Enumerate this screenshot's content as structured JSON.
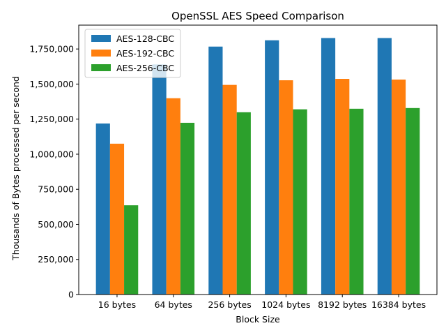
{
  "chart_data": {
    "type": "bar",
    "title": "OpenSSL AES Speed Comparison",
    "xlabel": "Block Size",
    "ylabel": "Thousands of Bytes processed per second",
    "categories": [
      "16 bytes",
      "64 bytes",
      "256 bytes",
      "1024 bytes",
      "8192 bytes",
      "16384 bytes"
    ],
    "series": [
      {
        "name": "AES-128-CBC",
        "color": "#1f77b4",
        "values": [
          1219000,
          1640000,
          1767000,
          1812000,
          1828000,
          1828000
        ]
      },
      {
        "name": "AES-192-CBC",
        "color": "#ff7f0e",
        "values": [
          1075000,
          1399000,
          1494000,
          1527000,
          1537000,
          1532000
        ]
      },
      {
        "name": "AES-256-CBC",
        "color": "#2ca02c",
        "values": [
          636000,
          1224000,
          1299000,
          1320000,
          1324000,
          1329000
        ]
      }
    ],
    "yticks": [
      0,
      250000,
      500000,
      750000,
      1000000,
      1250000,
      1500000,
      1750000
    ],
    "ytick_labels": [
      "0",
      "250,000",
      "500,000",
      "750,000",
      "1,000,000",
      "1,250,000",
      "1,500,000",
      "1,750,000"
    ],
    "ylim": [
      0,
      1920000
    ],
    "grid": false,
    "legend_position": "upper-left"
  }
}
